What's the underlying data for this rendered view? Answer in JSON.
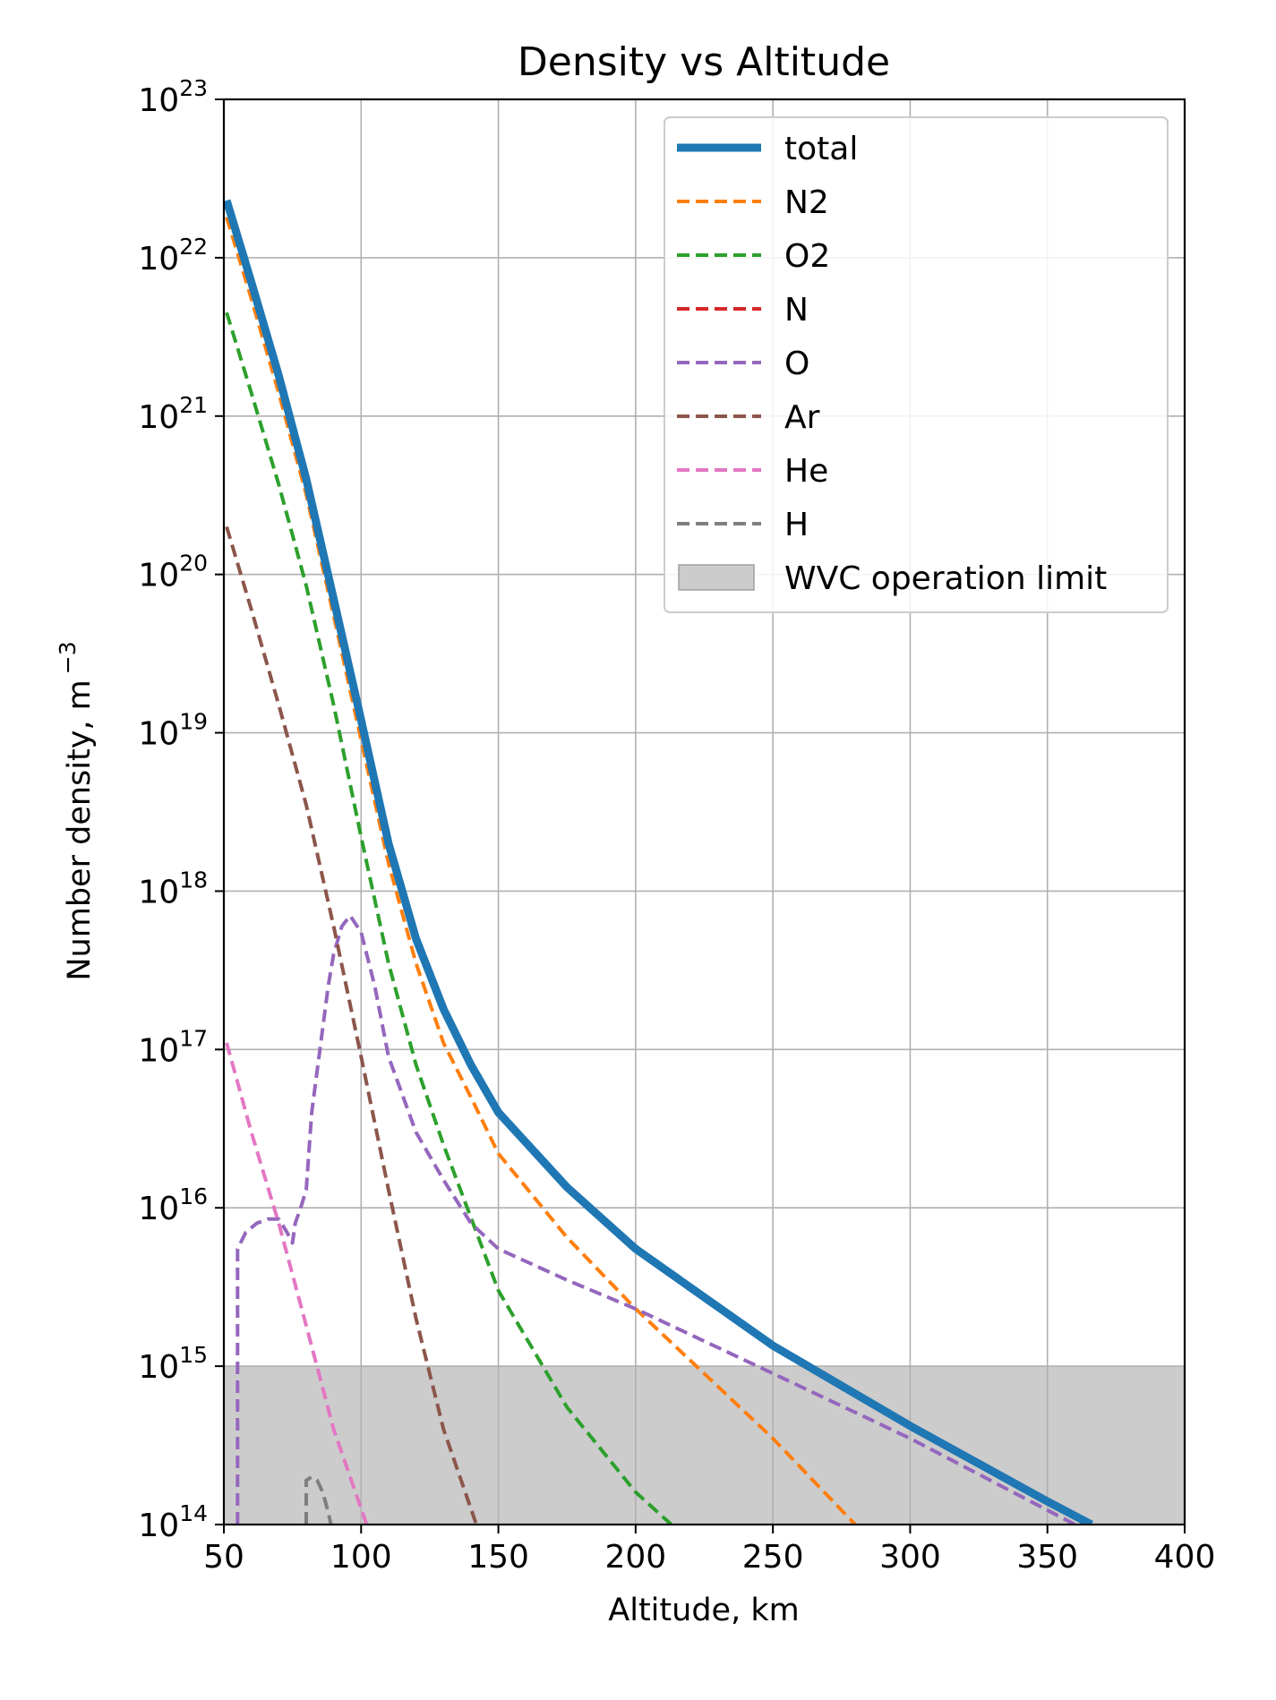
{
  "chart_data": {
    "type": "line",
    "title": "Density vs Altitude",
    "xlabel": "Altitude, km",
    "ylabel": "Number density, m",
    "ylabel_exp": "−3",
    "xlim": [
      50,
      400
    ],
    "ylim": [
      100000000000000.0,
      1e+23
    ],
    "yscale": "log",
    "grid": true,
    "legend_position": "top-right",
    "x_ticks": [
      "50",
      "100",
      "150",
      "200",
      "250",
      "300",
      "350",
      "400"
    ],
    "y_ticks": [
      {
        "base": "10",
        "exp": "14"
      },
      {
        "base": "10",
        "exp": "15"
      },
      {
        "base": "10",
        "exp": "16"
      },
      {
        "base": "10",
        "exp": "17"
      },
      {
        "base": "10",
        "exp": "18"
      },
      {
        "base": "10",
        "exp": "19"
      },
      {
        "base": "10",
        "exp": "20"
      },
      {
        "base": "10",
        "exp": "21"
      },
      {
        "base": "10",
        "exp": "22"
      },
      {
        "base": "10",
        "exp": "23"
      }
    ],
    "band": {
      "name": "WVC operation limit",
      "y_min": 100000000000000.0,
      "y_max": 1000000000000000.0,
      "color": "#cccccc"
    },
    "series": [
      {
        "name": "total",
        "color": "#1f77b4",
        "style": "solid",
        "x": [
          51,
          60,
          70,
          80,
          90,
          100,
          110,
          120,
          130,
          140,
          150,
          175,
          200,
          250,
          300,
          350,
          366
        ],
        "y": [
          2.3e+22,
          7e+21,
          1.8e+21,
          4e+20,
          7e+19,
          1.2e+19,
          2e+18,
          5e+17,
          1.8e+17,
          8e+16,
          4e+16,
          1.35e+16,
          5500000000000000.0,
          1350000000000000.0,
          420000000000000.0,
          140000000000000.0,
          100000000000000.0
        ]
      },
      {
        "name": "N2",
        "color": "#ff7f0e",
        "style": "dashed",
        "x": [
          51,
          60,
          70,
          80,
          90,
          100,
          110,
          120,
          130,
          140,
          150,
          175,
          200,
          250,
          280
        ],
        "y": [
          1.8e+22,
          5.5e+21,
          1.4e+21,
          3.2e+20,
          5.5e+19,
          9e+18,
          1.5e+18,
          3.5e+17,
          1.1e+17,
          5e+16,
          2.2e+16,
          6500000000000000.0,
          2300000000000000.0,
          350000000000000.0,
          100000000000000.0
        ]
      },
      {
        "name": "O2",
        "color": "#2ca02c",
        "style": "dashed",
        "x": [
          51,
          60,
          70,
          80,
          90,
          100,
          110,
          120,
          130,
          150,
          175,
          200,
          213
        ],
        "y": [
          4.5e+21,
          1.4e+21,
          3.7e+20,
          8.5e+19,
          1.5e+19,
          2.2e+18,
          3.5e+17,
          8e+16,
          2.5e+16,
          3000000000000000.0,
          550000000000000.0,
          160000000000000.0,
          100000000000000.0
        ]
      },
      {
        "name": "N",
        "color": "#d62728",
        "style": "dashed",
        "x": [],
        "y": []
      },
      {
        "name": "O",
        "color": "#9467bd",
        "style": "dashed",
        "x": [
          55,
          55,
          58,
          62,
          66,
          70,
          73,
          75,
          76,
          78,
          80,
          82,
          85,
          88,
          90,
          93,
          96,
          100,
          105,
          110,
          120,
          130,
          140,
          150,
          175,
          200,
          250,
          300,
          360
        ],
        "y": [
          100000000000000.0,
          5500000000000000.0,
          7000000000000000.0,
          8000000000000000.0,
          8500000000000000.0,
          8500000000000000.0,
          7000000000000000.0,
          6000000000000000.0,
          8000000000000000.0,
          1e+16,
          1.3e+16,
          4e+16,
          1e+17,
          2.5e+17,
          4e+17,
          6e+17,
          7e+17,
          5.5e+17,
          2.5e+17,
          9e+16,
          3e+16,
          1.5e+16,
          8000000000000000.0,
          5500000000000000.0,
          3500000000000000.0,
          2300000000000000.0,
          900000000000000.0,
          350000000000000.0,
          100000000000000.0
        ]
      },
      {
        "name": "Ar",
        "color": "#8c564b",
        "style": "dashed",
        "x": [
          51,
          60,
          70,
          80,
          90,
          100,
          110,
          120,
          130,
          142
        ],
        "y": [
          2e+20,
          6e+19,
          1.5e+19,
          3.5e+18,
          6e+17,
          9e+16,
          1.3e+16,
          2000000000000000.0,
          400000000000000.0,
          100000000000000.0
        ]
      },
      {
        "name": "He",
        "color": "#e377c2",
        "style": "dashed",
        "x": [
          51,
          60,
          70,
          80,
          90,
          102
        ],
        "y": [
          1.1e+17,
          3e+16,
          8000000000000000.0,
          1800000000000000.0,
          400000000000000.0,
          100000000000000.0
        ]
      },
      {
        "name": "H",
        "color": "#7f7f7f",
        "style": "dashed",
        "x": [
          80,
          80,
          82,
          84,
          86,
          88,
          89
        ],
        "y": [
          100000000000000.0,
          190000000000000.0,
          200000000000000.0,
          190000000000000.0,
          160000000000000.0,
          120000000000000.0,
          100000000000000.0
        ]
      }
    ]
  }
}
